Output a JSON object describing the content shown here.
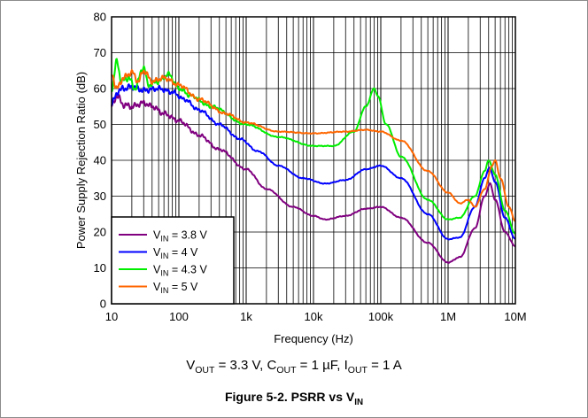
{
  "chart_data": {
    "type": "line",
    "title": "",
    "xlabel": "Frequency (Hz)",
    "ylabel": "Power Supply Rejection Ratio (dB)",
    "xscale": "log",
    "xlim": [
      10,
      10000000
    ],
    "ylim": [
      0,
      80
    ],
    "x_ticks": [
      10,
      100,
      1000,
      10000,
      100000,
      1000000,
      10000000
    ],
    "x_tick_labels": [
      "10",
      "100",
      "1k",
      "10k",
      "100k",
      "1M",
      "10M"
    ],
    "y_ticks": [
      0,
      10,
      20,
      30,
      40,
      50,
      60,
      70,
      80
    ],
    "y_tick_labels": [
      "0",
      "10",
      "20",
      "30",
      "40",
      "50",
      "60",
      "70",
      "80"
    ],
    "grid": true,
    "legend_position": "bottom-left",
    "series": [
      {
        "name": "V_IN = 3.8 V",
        "legend_main": "V",
        "legend_sub": "IN",
        "legend_rest": " = 3.8 V",
        "color": "#800080",
        "points": [
          [
            10,
            55
          ],
          [
            12,
            58
          ],
          [
            15,
            55.5
          ],
          [
            20,
            55
          ],
          [
            30,
            56
          ],
          [
            40,
            55
          ],
          [
            60,
            53
          ],
          [
            100,
            51
          ],
          [
            200,
            47
          ],
          [
            400,
            43
          ],
          [
            1000,
            37.5
          ],
          [
            2000,
            32
          ],
          [
            5000,
            27
          ],
          [
            10000,
            24.5
          ],
          [
            15000,
            23.5
          ],
          [
            30000,
            24.5
          ],
          [
            60000,
            26.5
          ],
          [
            100000,
            27
          ],
          [
            200000,
            24
          ],
          [
            500000,
            17
          ],
          [
            1000000,
            11.5
          ],
          [
            1500000,
            13
          ],
          [
            2500000,
            21
          ],
          [
            3500000,
            30
          ],
          [
            4200000,
            33.5
          ],
          [
            5000000,
            29
          ],
          [
            7000000,
            20
          ],
          [
            10000000,
            16
          ]
        ]
      },
      {
        "name": "V_IN = 4 V",
        "legend_main": "V",
        "legend_sub": "IN",
        "legend_rest": " = 4 V",
        "color": "#0000ff",
        "points": [
          [
            10,
            56
          ],
          [
            13,
            59.5
          ],
          [
            15,
            60
          ],
          [
            20,
            60.5
          ],
          [
            30,
            59.5
          ],
          [
            50,
            60
          ],
          [
            80,
            59
          ],
          [
            120,
            57
          ],
          [
            200,
            54
          ],
          [
            400,
            50
          ],
          [
            800,
            46
          ],
          [
            1500,
            42.5
          ],
          [
            3000,
            38.5
          ],
          [
            7000,
            35
          ],
          [
            15000,
            33.5
          ],
          [
            30000,
            34.5
          ],
          [
            60000,
            37.5
          ],
          [
            100000,
            38.5
          ],
          [
            200000,
            35
          ],
          [
            500000,
            25
          ],
          [
            1000000,
            18
          ],
          [
            1500000,
            18.5
          ],
          [
            2500000,
            27
          ],
          [
            3500000,
            35
          ],
          [
            4100000,
            38
          ],
          [
            5000000,
            34
          ],
          [
            7000000,
            24
          ],
          [
            10000000,
            18
          ]
        ]
      },
      {
        "name": "V_IN = 4.3 V",
        "legend_main": "V",
        "legend_sub": "IN",
        "legend_rest": " = 4.3 V",
        "color": "#00ee00",
        "points": [
          [
            10,
            60
          ],
          [
            12,
            67.5
          ],
          [
            14,
            62
          ],
          [
            18,
            63
          ],
          [
            22,
            60
          ],
          [
            30,
            66
          ],
          [
            35,
            61
          ],
          [
            50,
            62
          ],
          [
            70,
            64
          ],
          [
            100,
            60
          ],
          [
            150,
            58
          ],
          [
            300,
            55
          ],
          [
            1000,
            50
          ],
          [
            3000,
            46.5
          ],
          [
            10000,
            44
          ],
          [
            20000,
            44
          ],
          [
            40000,
            48
          ],
          [
            60000,
            55
          ],
          [
            80000,
            60
          ],
          [
            90000,
            58
          ],
          [
            120000,
            50
          ],
          [
            200000,
            41
          ],
          [
            500000,
            29
          ],
          [
            1000000,
            23.5
          ],
          [
            1500000,
            24
          ],
          [
            2500000,
            30
          ],
          [
            3500000,
            37
          ],
          [
            4000000,
            40
          ],
          [
            5000000,
            36
          ],
          [
            7000000,
            26
          ],
          [
            10000000,
            19.5
          ]
        ]
      },
      {
        "name": "V_IN = 5 V",
        "legend_main": "V",
        "legend_sub": "IN",
        "legend_rest": " = 5 V",
        "color": "#ff6600",
        "points": [
          [
            10,
            64
          ],
          [
            12,
            60
          ],
          [
            15,
            63
          ],
          [
            20,
            64.5
          ],
          [
            25,
            62
          ],
          [
            30,
            65
          ],
          [
            40,
            62
          ],
          [
            60,
            63
          ],
          [
            100,
            61
          ],
          [
            200,
            57
          ],
          [
            500,
            53
          ],
          [
            1000,
            50.5
          ],
          [
            3000,
            48
          ],
          [
            10000,
            47.5
          ],
          [
            30000,
            48
          ],
          [
            60000,
            48.5
          ],
          [
            100000,
            48
          ],
          [
            200000,
            45.5
          ],
          [
            500000,
            37
          ],
          [
            1000000,
            31
          ],
          [
            1500000,
            28
          ],
          [
            2000000,
            29
          ],
          [
            2500000,
            27
          ],
          [
            3500000,
            32
          ],
          [
            4500000,
            38.5
          ],
          [
            5000000,
            40
          ],
          [
            6000000,
            35
          ],
          [
            8000000,
            27
          ],
          [
            10000000,
            23
          ]
        ]
      }
    ]
  },
  "conditions": {
    "v": "V",
    "v_sub": "OUT",
    "v_rest": " = 3.3 V, ",
    "c": "C",
    "c_sub": "OUT",
    "c_rest": " = 1 µF, ",
    "i": "I",
    "i_sub": "OUT",
    "i_rest": " = 1 A"
  },
  "figure": {
    "label": "Figure 5-2. PSRR vs V",
    "label_sub": "IN"
  }
}
